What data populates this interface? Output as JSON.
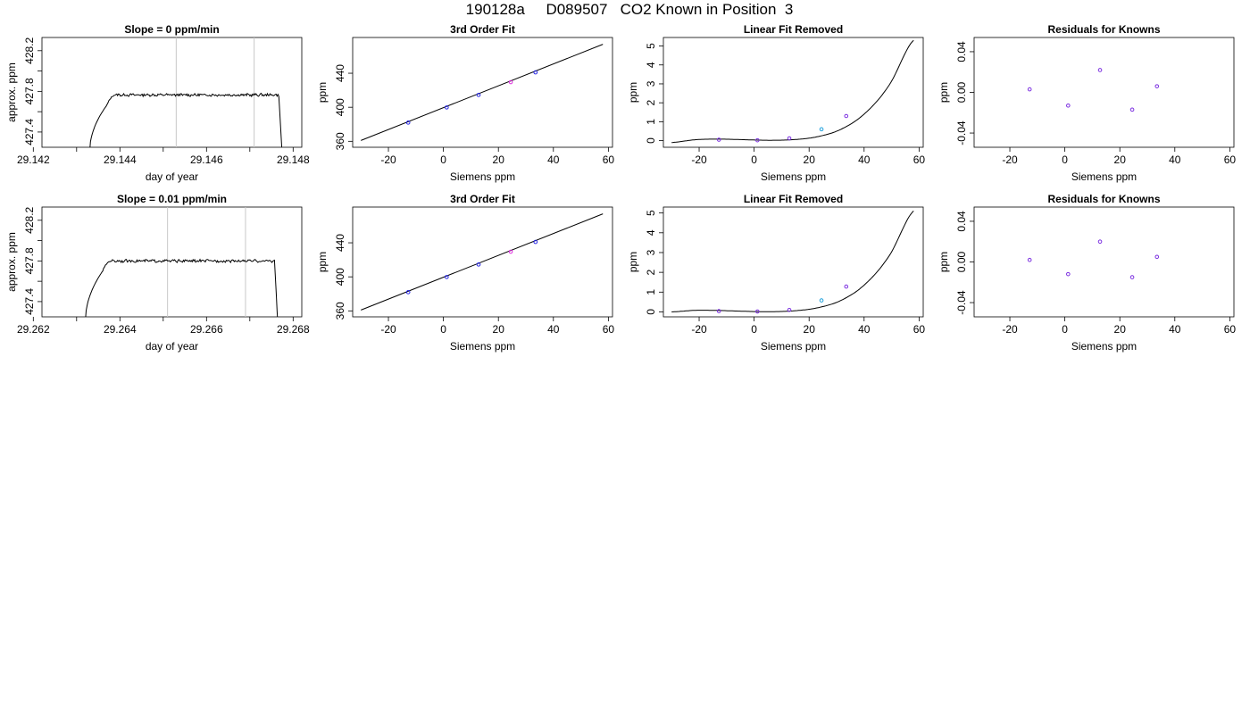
{
  "title": "190128a     D089507   CO2 Known in Position  3",
  "colors": {
    "line": "#000000",
    "vline": "#c8c8c8",
    "blue": "#2323e6",
    "magenta": "#dc28dc",
    "purple": "#7b2fe0",
    "cyan": "#1ea0dc",
    "red": "#e63232"
  },
  "chart_data": [
    {
      "type": "line",
      "title": "Slope =  0  ppm/min",
      "xlabel": "day of year",
      "ylabel": "approx. ppm",
      "xlim": [
        29.1422,
        29.1482
      ],
      "ylim": [
        427.25,
        428.33
      ],
      "xticks": [
        "29.142",
        "29.144",
        "29.146",
        "29.148"
      ],
      "xtick_values": [
        29.142,
        29.144,
        29.146,
        29.148
      ],
      "yticks": [
        "427.4",
        "427.8",
        "428.2"
      ],
      "ytick_values": [
        427.4,
        427.8,
        428.2
      ],
      "vlines": [
        29.1453,
        29.1471
      ],
      "trace": {
        "x_start": 29.1433,
        "x_end": 29.14775,
        "rise_end": 29.1437,
        "plateau_start": 29.1439,
        "level": 427.765,
        "noise": 0.012
      }
    },
    {
      "type": "scatter",
      "title": "3rd Order Fit",
      "xlabel": "Siemens ppm",
      "ylabel": "ppm",
      "xlim": [
        -33,
        61.5
      ],
      "ylim": [
        353,
        482
      ],
      "xticks": [
        "-20",
        "0",
        "20",
        "40",
        "60"
      ],
      "xtick_values": [
        -20,
        0,
        20,
        40,
        60
      ],
      "yticks": [
        "360",
        "400",
        "440"
      ],
      "ytick_values": [
        360,
        400,
        440
      ],
      "fit_line": {
        "x": [
          -30,
          58
        ],
        "y": [
          361,
          474
        ]
      },
      "points": [
        {
          "x": -12.8,
          "y": 382,
          "color": "blue"
        },
        {
          "x": 1.2,
          "y": 399.8,
          "color": "blue"
        },
        {
          "x": 12.8,
          "y": 414.5,
          "color": "blue"
        },
        {
          "x": 24.5,
          "y": 429.5,
          "color": "magenta"
        },
        {
          "x": 33.5,
          "y": 441,
          "color": "blue"
        }
      ]
    },
    {
      "type": "scatter",
      "title": "Linear Fit Removed",
      "xlabel": "Siemens ppm",
      "ylabel": "ppm",
      "xlim": [
        -33,
        61.5
      ],
      "ylim": [
        -0.35,
        5.45
      ],
      "xticks": [
        "-20",
        "0",
        "20",
        "40",
        "60"
      ],
      "xtick_values": [
        -20,
        0,
        20,
        40,
        60
      ],
      "yticks": [
        "0",
        "1",
        "2",
        "3",
        "4",
        "5"
      ],
      "ytick_values": [
        0,
        1,
        2,
        3,
        4,
        5
      ],
      "curve": {
        "x_min": -30,
        "x_max": 58,
        "y": [
          -0.1,
          0.05,
          0.08,
          0.05,
          0.02,
          0.05,
          0.2,
          0.6,
          1.45,
          2.95,
          5.3
        ]
      },
      "points": [
        {
          "x": -12.8,
          "y": 0.05,
          "color": "purple"
        },
        {
          "x": 1.2,
          "y": 0.02,
          "color": "purple"
        },
        {
          "x": 12.8,
          "y": 0.12,
          "color": "purple"
        },
        {
          "x": 24.5,
          "y": 0.6,
          "color": "cyan"
        },
        {
          "x": 33.5,
          "y": 1.3,
          "color": "purple"
        }
      ]
    },
    {
      "type": "scatter",
      "title": "Residuals for Knowns",
      "xlabel": "Siemens ppm",
      "ylabel": "ppm",
      "xlim": [
        -33,
        61.5
      ],
      "ylim": [
        -0.054,
        0.054
      ],
      "xticks": [
        "-20",
        "0",
        "20",
        "40",
        "60"
      ],
      "xtick_values": [
        -20,
        0,
        20,
        40,
        60
      ],
      "yticks": [
        "-0.04",
        "0.00",
        "0.04"
      ],
      "ytick_values": [
        -0.04,
        0.0,
        0.04
      ],
      "points": [
        {
          "x": -12.8,
          "y": 0.003,
          "color": "purple"
        },
        {
          "x": 1.2,
          "y": -0.013,
          "color": "purple"
        },
        {
          "x": 12.8,
          "y": 0.022,
          "color": "purple"
        },
        {
          "x": 24.5,
          "y": -0.017,
          "color": "purple"
        },
        {
          "x": 33.5,
          "y": 0.006,
          "color": "purple"
        }
      ]
    },
    {
      "type": "line",
      "title": "Slope =  0.01  ppm/min",
      "xlabel": "day of year",
      "ylabel": "approx. ppm",
      "xlim": [
        29.2622,
        29.2682
      ],
      "ylim": [
        427.25,
        428.33
      ],
      "xticks": [
        "29.262",
        "29.264",
        "29.266",
        "29.268"
      ],
      "xtick_values": [
        29.262,
        29.264,
        29.266,
        29.268
      ],
      "yticks": [
        "427.4",
        "427.8",
        "428.2"
      ],
      "ytick_values": [
        427.4,
        427.8,
        428.2
      ],
      "vlines": [
        29.2651,
        29.2669
      ],
      "trace": {
        "x_start": 29.2632,
        "x_end": 29.26765,
        "rise_end": 29.2636,
        "plateau_start": 29.2638,
        "level": 427.8,
        "noise": 0.012
      }
    },
    {
      "type": "scatter",
      "title": "3rd Order Fit",
      "xlabel": "Siemens ppm",
      "ylabel": "ppm",
      "xlim": [
        -33,
        61.5
      ],
      "ylim": [
        353,
        482
      ],
      "xticks": [
        "-20",
        "0",
        "20",
        "40",
        "60"
      ],
      "xtick_values": [
        -20,
        0,
        20,
        40,
        60
      ],
      "yticks": [
        "360",
        "400",
        "440"
      ],
      "ytick_values": [
        360,
        400,
        440
      ],
      "fit_line": {
        "x": [
          -30,
          58
        ],
        "y": [
          361,
          474
        ]
      },
      "points": [
        {
          "x": -12.8,
          "y": 382,
          "color": "blue"
        },
        {
          "x": 1.2,
          "y": 399.8,
          "color": "blue"
        },
        {
          "x": 12.8,
          "y": 414.5,
          "color": "blue"
        },
        {
          "x": 24.5,
          "y": 429.5,
          "color": "magenta"
        },
        {
          "x": 33.5,
          "y": 441,
          "color": "blue"
        }
      ]
    },
    {
      "type": "scatter",
      "title": "Linear Fit Removed",
      "xlabel": "Siemens ppm",
      "ylabel": "ppm",
      "xlim": [
        -33,
        61.5
      ],
      "ylim": [
        -0.25,
        5.3
      ],
      "xticks": [
        "-20",
        "0",
        "20",
        "40",
        "60"
      ],
      "xtick_values": [
        -20,
        0,
        20,
        40,
        60
      ],
      "yticks": [
        "0",
        "1",
        "2",
        "3",
        "4",
        "5"
      ],
      "ytick_values": [
        0,
        1,
        2,
        3,
        4,
        5
      ],
      "curve": {
        "x_min": -30,
        "x_max": 58,
        "y": [
          0.0,
          0.08,
          0.07,
          0.03,
          0.01,
          0.05,
          0.2,
          0.58,
          1.4,
          2.85,
          5.1
        ]
      },
      "points": [
        {
          "x": -12.8,
          "y": 0.04,
          "color": "purple"
        },
        {
          "x": 1.2,
          "y": 0.02,
          "color": "purple"
        },
        {
          "x": 12.8,
          "y": 0.1,
          "color": "purple"
        },
        {
          "x": 24.5,
          "y": 0.58,
          "color": "cyan"
        },
        {
          "x": 33.5,
          "y": 1.28,
          "color": "purple"
        }
      ]
    },
    {
      "type": "scatter",
      "title": "Residuals for Knowns",
      "xlabel": "Siemens ppm",
      "ylabel": "ppm",
      "xlim": [
        -33,
        61.5
      ],
      "ylim": [
        -0.054,
        0.054
      ],
      "xticks": [
        "-20",
        "0",
        "20",
        "40",
        "60"
      ],
      "xtick_values": [
        -20,
        0,
        20,
        40,
        60
      ],
      "yticks": [
        "-0.04",
        "0.00",
        "0.04"
      ],
      "ytick_values": [
        -0.04,
        0.0,
        0.04
      ],
      "points": [
        {
          "x": -12.8,
          "y": 0.002,
          "color": "purple"
        },
        {
          "x": 1.2,
          "y": -0.012,
          "color": "purple"
        },
        {
          "x": 12.8,
          "y": 0.02,
          "color": "purple"
        },
        {
          "x": 24.5,
          "y": -0.015,
          "color": "purple"
        },
        {
          "x": 33.5,
          "y": 0.005,
          "color": "purple"
        }
      ]
    }
  ]
}
